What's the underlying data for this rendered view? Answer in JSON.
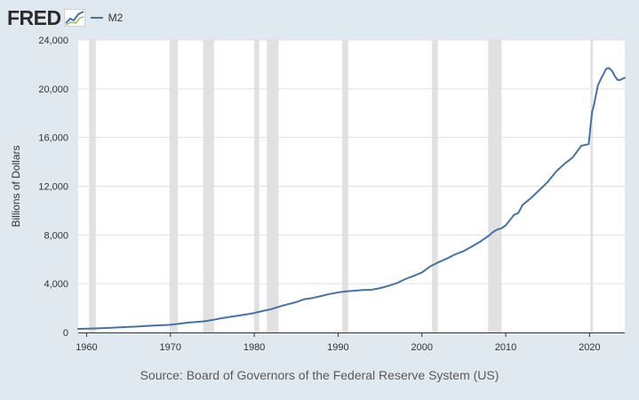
{
  "header": {
    "logo_text": "FRED",
    "logo_icon": "line-chart-icon",
    "legend_label": "M2"
  },
  "footer": {
    "source": "Source: Board of Governors of the Federal Reserve System (US)"
  },
  "colors": {
    "background": "#e1e9f0",
    "plot_background": "#ffffff",
    "line": "#4572a7",
    "recession": "#e1e1e1",
    "grid": "#e0e0e0"
  },
  "chart_data": {
    "type": "line",
    "title": "",
    "xlabel": "",
    "ylabel": "Billions of Dollars",
    "xlim": [
      1959,
      2024.2
    ],
    "ylim": [
      0,
      24000
    ],
    "grid": true,
    "legend_placement": "top-left",
    "x_ticks": [
      1960,
      1970,
      1980,
      1990,
      2000,
      2010,
      2020
    ],
    "x_tick_labels": [
      "1960",
      "1970",
      "1980",
      "1990",
      "2000",
      "2010",
      "2020"
    ],
    "y_ticks": [
      0,
      4000,
      8000,
      12000,
      16000,
      20000,
      24000
    ],
    "y_tick_labels": [
      "0",
      "4,000",
      "8,000",
      "12,000",
      "16,000",
      "20,000",
      "24,000"
    ],
    "recessions": [
      [
        1960.3,
        1961.1
      ],
      [
        1969.9,
        1970.9
      ],
      [
        1973.9,
        1975.2
      ],
      [
        1980.0,
        1980.6
      ],
      [
        1981.5,
        1982.9
      ],
      [
        1990.5,
        1991.2
      ],
      [
        2001.2,
        2001.9
      ],
      [
        2007.9,
        2009.5
      ],
      [
        2020.1,
        2020.4
      ]
    ],
    "series": [
      {
        "name": "M2",
        "x": [
          1959,
          1960,
          1961,
          1962,
          1963,
          1964,
          1965,
          1966,
          1967,
          1968,
          1969,
          1970,
          1971,
          1972,
          1973,
          1974,
          1975,
          1976,
          1977,
          1978,
          1979,
          1980,
          1981,
          1982,
          1983,
          1984,
          1985,
          1986,
          1987,
          1988,
          1989,
          1990,
          1991,
          1992,
          1993,
          1994,
          1995,
          1996,
          1997,
          1998,
          1999,
          2000,
          2001,
          2002,
          2003,
          2004,
          2005,
          2006,
          2007,
          2008,
          2008.5,
          2009,
          2009.5,
          2010,
          2011,
          2011.5,
          2012,
          2013,
          2014,
          2015,
          2016,
          2017,
          2018,
          2019,
          2019.9,
          2020.1,
          2020.3,
          2020.5,
          2021,
          2021.5,
          2022,
          2022.3,
          2022.7,
          2023,
          2023.3,
          2023.6,
          2024,
          2024.2
        ],
        "values": [
          290,
          310,
          330,
          360,
          390,
          420,
          460,
          480,
          530,
          570,
          590,
          630,
          710,
          800,
          860,
          910,
          1020,
          1150,
          1270,
          1370,
          1470,
          1600,
          1760,
          1910,
          2120,
          2310,
          2490,
          2730,
          2830,
          2990,
          3160,
          3280,
          3380,
          3430,
          3480,
          3500,
          3640,
          3820,
          4040,
          4380,
          4640,
          4920,
          5430,
          5770,
          6070,
          6420,
          6680,
          7070,
          7470,
          7950,
          8250,
          8450,
          8550,
          8800,
          9660,
          9800,
          10450,
          11020,
          11680,
          12340,
          13200,
          13840,
          14360,
          15320,
          15450,
          16800,
          18100,
          18600,
          20300,
          21000,
          21650,
          21700,
          21450,
          21050,
          20750,
          20700,
          20850,
          20900
        ]
      }
    ]
  }
}
